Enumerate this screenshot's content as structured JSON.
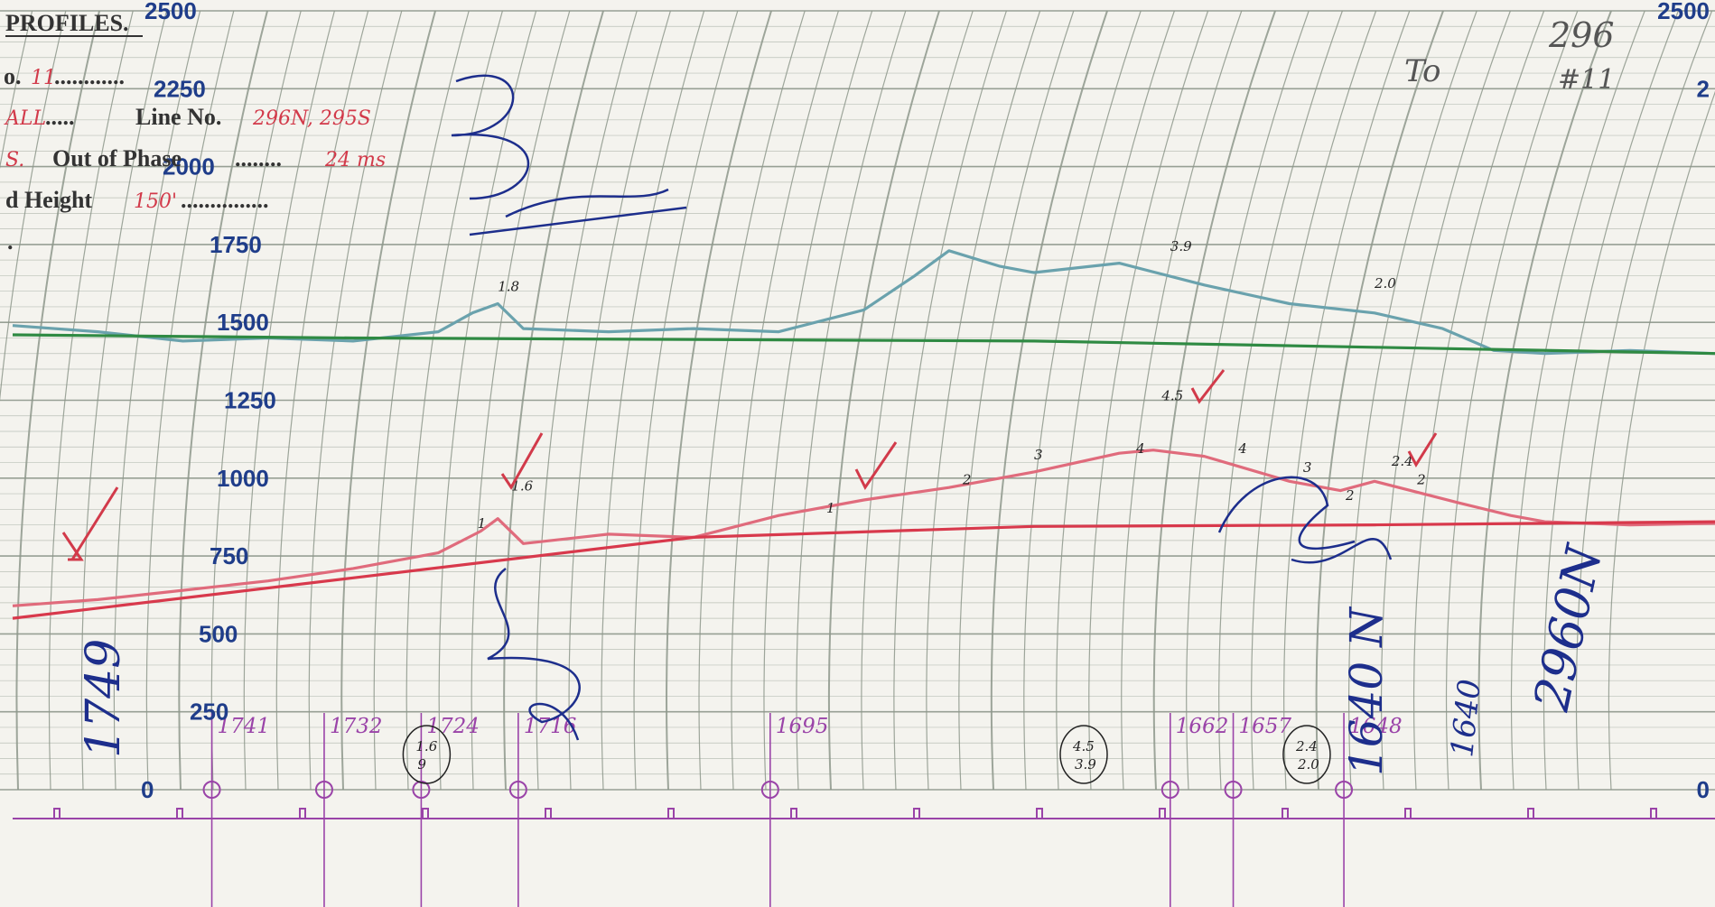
{
  "header": {
    "profiles": "PROFILES.",
    "line1_prefix": "o.",
    "line1_value": "11",
    "line1_dots": "............",
    "line2_prefix": "ALL",
    "line2_dots": ".....",
    "line2_label": "Line No.",
    "line2_value": "296N, 295S",
    "line3_prefix": "S.",
    "line3_label": "Out of Phase",
    "line3_dots": "........",
    "line3_value": "24 ms",
    "line4_label": "d Height",
    "line4_value": "150'",
    "line4_dots": "...............",
    "line5": "."
  },
  "notes": {
    "top_right_line": "296",
    "top_right_sub": "#11",
    "top_right_to": "To",
    "left_vertical": "1749",
    "right_blue_1": "1640 N",
    "right_blue_2": "2960N",
    "right_blue_3": "1640"
  },
  "chart_data": {
    "type": "line",
    "title": "",
    "xlabel": "",
    "ylabel": "",
    "ylim": [
      0,
      2500
    ],
    "y_ticks": [
      "2500",
      "2250",
      "2000",
      "1750",
      "1500",
      "1250",
      "1000",
      "750",
      "500",
      "250",
      "0"
    ],
    "y_ticks_right": [
      "2500",
      "2",
      "0"
    ],
    "fiducials": [
      {
        "label": "1741",
        "x": 0.117
      },
      {
        "label": "1732",
        "x": 0.183
      },
      {
        "label": "1724",
        "x": 0.24
      },
      {
        "label": "1716",
        "x": 0.297
      },
      {
        "label": "1695",
        "x": 0.445
      },
      {
        "label": "1662",
        "x": 0.68
      },
      {
        "label": "1657",
        "x": 0.717
      },
      {
        "label": "1648",
        "x": 0.782
      }
    ],
    "circled_notes": [
      {
        "top": "1.6",
        "bottom": "9",
        "x": 0.24
      },
      {
        "top": "4.5",
        "bottom": "3.9",
        "x": 0.626
      },
      {
        "top": "2.4",
        "bottom": "2.0",
        "x": 0.757
      }
    ],
    "series": [
      {
        "color": "#6aa2ad",
        "x": [
          0,
          0.05,
          0.1,
          0.15,
          0.2,
          0.25,
          0.27,
          0.285,
          0.3,
          0.35,
          0.4,
          0.45,
          0.5,
          0.53,
          0.55,
          0.58,
          0.6,
          0.65,
          0.7,
          0.75,
          0.8,
          0.84,
          0.87,
          0.9,
          0.95,
          1
        ],
        "y": [
          1490,
          1470,
          1440,
          1450,
          1440,
          1470,
          1530,
          1560,
          1480,
          1470,
          1480,
          1470,
          1540,
          1650,
          1730,
          1680,
          1660,
          1690,
          1620,
          1560,
          1530,
          1480,
          1410,
          1400,
          1410,
          1400
        ]
      },
      {
        "color": "#2f8a43",
        "x": [
          0,
          0.2,
          0.4,
          0.6,
          0.8,
          1
        ],
        "y": [
          1460,
          1450,
          1445,
          1440,
          1420,
          1400
        ]
      },
      {
        "color": "#e06b7c",
        "x": [
          0,
          0.05,
          0.1,
          0.15,
          0.2,
          0.25,
          0.275,
          0.285,
          0.3,
          0.35,
          0.4,
          0.45,
          0.5,
          0.55,
          0.6,
          0.65,
          0.67,
          0.7,
          0.75,
          0.78,
          0.8,
          0.85,
          0.88,
          0.9,
          0.95,
          1
        ],
        "y": [
          590,
          610,
          640,
          670,
          710,
          760,
          830,
          870,
          790,
          820,
          810,
          880,
          930,
          970,
          1020,
          1080,
          1090,
          1070,
          990,
          960,
          990,
          920,
          880,
          860,
          850,
          855
        ]
      },
      {
        "color": "#d8394c",
        "x": [
          0,
          0.2,
          0.4,
          0.6,
          0.8,
          1
        ],
        "y": [
          550,
          680,
          810,
          845,
          850,
          860
        ]
      }
    ],
    "point_labels": [
      {
        "text": "1.8",
        "x": 0.285,
        "y": 1600
      },
      {
        "text": "3.9",
        "x": 0.68,
        "y": 1730
      },
      {
        "text": "2.0",
        "x": 0.8,
        "y": 1610
      },
      {
        "text": "1.6",
        "x": 0.293,
        "y": 960
      },
      {
        "text": "4.5",
        "x": 0.675,
        "y": 1250
      },
      {
        "text": "2.4",
        "x": 0.81,
        "y": 1040
      },
      {
        "text": "1",
        "x": 0.273,
        "y": 840
      },
      {
        "text": "1",
        "x": 0.478,
        "y": 890
      },
      {
        "text": "2",
        "x": 0.558,
        "y": 980
      },
      {
        "text": "3",
        "x": 0.6,
        "y": 1060
      },
      {
        "text": "4",
        "x": 0.66,
        "y": 1080
      },
      {
        "text": "4",
        "x": 0.72,
        "y": 1080
      },
      {
        "text": "3",
        "x": 0.758,
        "y": 1020
      },
      {
        "text": "2",
        "x": 0.783,
        "y": 930
      },
      {
        "text": "2",
        "x": 0.825,
        "y": 980
      }
    ],
    "colors": {
      "grid": "#8d978b",
      "fiducial": "#9a43a8",
      "ink_red": "#d23a4a",
      "ink_blue": "#1d2e8c",
      "tick_label": "#1f3d8a"
    }
  }
}
